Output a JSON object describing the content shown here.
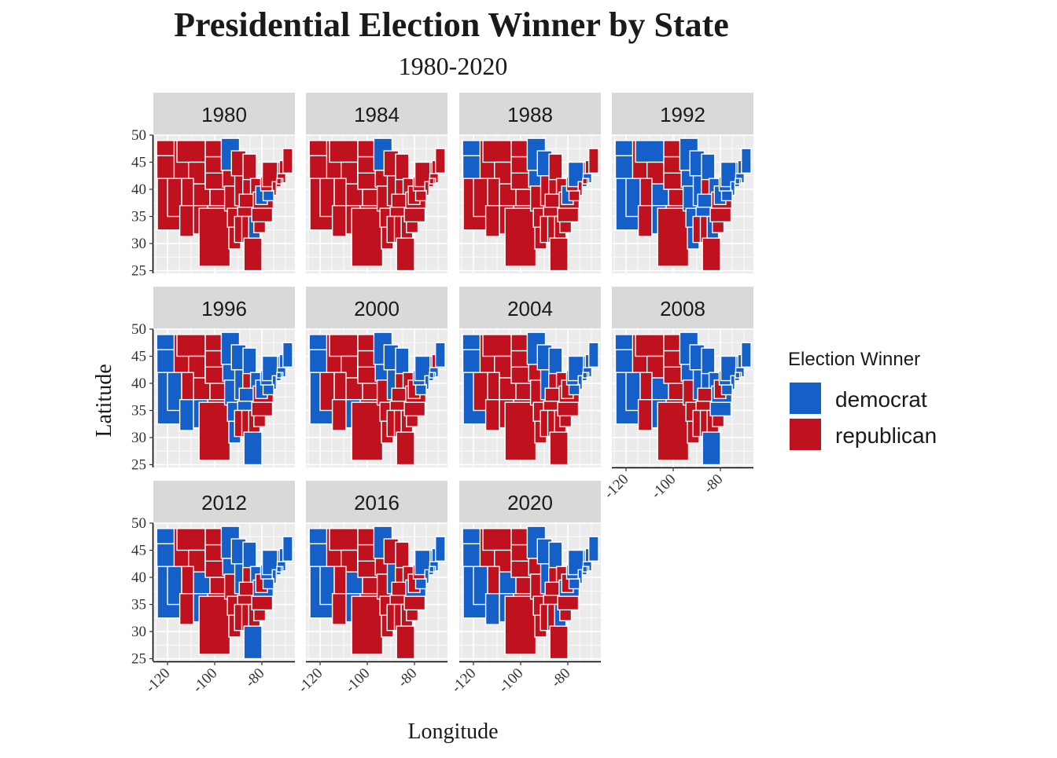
{
  "chart_data": {
    "type": "map",
    "title": "Presidential Election Winner by State",
    "subtitle": "1980-2020",
    "xlabel": "Longitude",
    "ylabel": "Latitude",
    "xlim": [
      -126,
      -66
    ],
    "ylim": [
      24.5,
      50
    ],
    "x_ticks": [
      -120,
      -100,
      -80
    ],
    "x_tick_labels": [
      "-120",
      "-100",
      "-80"
    ],
    "y_ticks": [
      25,
      30,
      35,
      40,
      45,
      50
    ],
    "y_tick_labels": [
      "25",
      "30",
      "35",
      "40",
      "45",
      "50"
    ],
    "grid": true,
    "legend": {
      "title": "Election Winner",
      "position": "right",
      "entries": [
        {
          "label": "democrat",
          "color": "#1560C8"
        },
        {
          "label": "republican",
          "color": "#C0111F"
        }
      ]
    },
    "colors": {
      "democrat": "#1560C8",
      "republican": "#C0111F",
      "panel": "#EBEBEB",
      "strip": "#D9D9D9",
      "grid": "#FFFFFF"
    },
    "facets": [
      {
        "year": "1980",
        "democrat": [
          "GA",
          "MN",
          "WV",
          "MD",
          "RI",
          "HI",
          "DC"
        ]
      },
      {
        "year": "1984",
        "democrat": [
          "MN",
          "DC"
        ]
      },
      {
        "year": "1988",
        "democrat": [
          "WA",
          "OR",
          "MN",
          "WI",
          "IA",
          "WV",
          "NY",
          "MA",
          "RI",
          "HI",
          "DC"
        ]
      },
      {
        "year": "1992",
        "democrat": [
          "WA",
          "OR",
          "CA",
          "NV",
          "MT",
          "CO",
          "NM",
          "MN",
          "IA",
          "MO",
          "AR",
          "LA",
          "TN",
          "KY",
          "IL",
          "WI",
          "MI",
          "OH",
          "WV",
          "PA",
          "NY",
          "VT",
          "NH",
          "ME",
          "MA",
          "RI",
          "CT",
          "NJ",
          "DE",
          "MD",
          "GA",
          "HI",
          "DC"
        ]
      },
      {
        "year": "1996",
        "democrat": [
          "WA",
          "OR",
          "CA",
          "NV",
          "AZ",
          "NM",
          "MN",
          "IA",
          "MO",
          "AR",
          "LA",
          "TN",
          "KY",
          "IL",
          "WI",
          "MI",
          "OH",
          "WV",
          "PA",
          "NY",
          "VT",
          "NH",
          "ME",
          "MA",
          "RI",
          "CT",
          "NJ",
          "DE",
          "MD",
          "FL",
          "HI",
          "DC"
        ]
      },
      {
        "year": "2000",
        "democrat": [
          "WA",
          "OR",
          "CA",
          "NM",
          "MN",
          "IA",
          "WI",
          "IL",
          "MI",
          "PA",
          "NY",
          "VT",
          "ME",
          "MA",
          "RI",
          "CT",
          "NJ",
          "DE",
          "MD",
          "HI",
          "DC"
        ]
      },
      {
        "year": "2004",
        "democrat": [
          "WA",
          "OR",
          "CA",
          "MN",
          "WI",
          "IL",
          "MI",
          "PA",
          "NY",
          "VT",
          "NH",
          "ME",
          "MA",
          "RI",
          "CT",
          "NJ",
          "DE",
          "MD",
          "HI",
          "DC"
        ]
      },
      {
        "year": "2008",
        "democrat": [
          "WA",
          "OR",
          "CA",
          "NV",
          "CO",
          "NM",
          "MN",
          "IA",
          "WI",
          "IL",
          "IN",
          "MI",
          "OH",
          "PA",
          "VA",
          "NC",
          "FL",
          "NY",
          "VT",
          "NH",
          "ME",
          "MA",
          "RI",
          "CT",
          "NJ",
          "DE",
          "MD",
          "HI",
          "DC"
        ]
      },
      {
        "year": "2012",
        "democrat": [
          "WA",
          "OR",
          "CA",
          "NV",
          "CO",
          "NM",
          "MN",
          "IA",
          "WI",
          "IL",
          "MI",
          "OH",
          "PA",
          "VA",
          "FL",
          "NY",
          "VT",
          "NH",
          "ME",
          "MA",
          "RI",
          "CT",
          "NJ",
          "DE",
          "MD",
          "HI",
          "DC"
        ]
      },
      {
        "year": "2016",
        "democrat": [
          "WA",
          "OR",
          "CA",
          "NV",
          "CO",
          "NM",
          "MN",
          "IL",
          "VA",
          "NY",
          "VT",
          "NH",
          "ME",
          "MA",
          "RI",
          "CT",
          "NJ",
          "DE",
          "MD",
          "HI",
          "DC"
        ]
      },
      {
        "year": "2020",
        "democrat": [
          "WA",
          "OR",
          "CA",
          "NV",
          "AZ",
          "CO",
          "NM",
          "MN",
          "WI",
          "IL",
          "MI",
          "PA",
          "GA",
          "VA",
          "NY",
          "VT",
          "NH",
          "ME",
          "MA",
          "RI",
          "CT",
          "NJ",
          "DE",
          "MD",
          "HI",
          "DC"
        ]
      }
    ]
  }
}
